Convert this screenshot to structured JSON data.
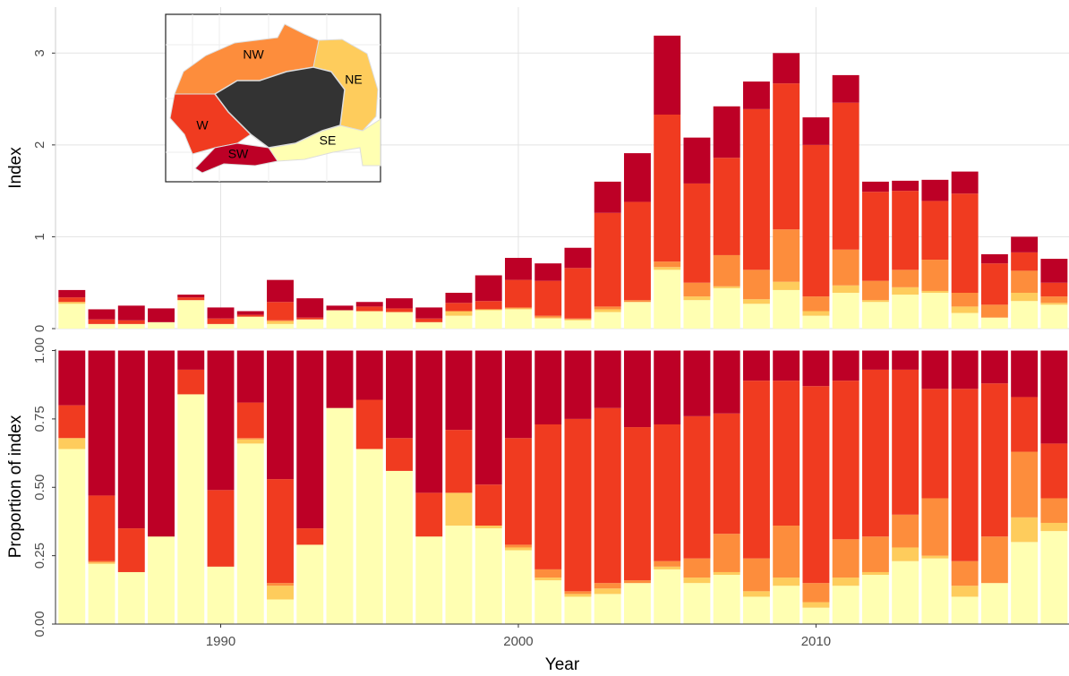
{
  "chart_data": [
    {
      "type": "bar",
      "stacked": true,
      "ylabel": "Index",
      "x": [
        1985,
        1986,
        1987,
        1988,
        1989,
        1990,
        1991,
        1992,
        1993,
        1994,
        1995,
        1996,
        1997,
        1998,
        1999,
        2000,
        2001,
        2002,
        2003,
        2004,
        2005,
        2006,
        2007,
        2008,
        2009,
        2010,
        2011,
        2012,
        2013,
        2014,
        2015,
        2016,
        2017,
        2018
      ],
      "xlim": [
        1984.45,
        2018.5
      ],
      "ylim": [
        0,
        3.5
      ],
      "yticks": [
        0,
        1,
        2,
        3
      ],
      "grid": true,
      "series": [
        {
          "name": "SE",
          "color": "#ffffb2",
          "values": [
            0.27,
            0.05,
            0.05,
            0.07,
            0.31,
            0.05,
            0.13,
            0.05,
            0.1,
            0.2,
            0.19,
            0.18,
            0.07,
            0.14,
            0.2,
            0.21,
            0.11,
            0.09,
            0.18,
            0.29,
            0.64,
            0.31,
            0.44,
            0.27,
            0.42,
            0.14,
            0.39,
            0.29,
            0.37,
            0.39,
            0.17,
            0.12,
            0.3,
            0.26
          ]
        },
        {
          "name": "NE",
          "color": "#fecc5c",
          "values": [
            0.02,
            0,
            0,
            0,
            0,
            0,
            0,
            0.03,
            0,
            0,
            0,
            0,
            0,
            0.05,
            0.01,
            0.01,
            0.01,
            0.01,
            0.03,
            0,
            0.03,
            0.04,
            0.02,
            0.05,
            0.09,
            0.05,
            0.08,
            0.02,
            0.08,
            0.02,
            0.07,
            0,
            0.09,
            0.02
          ]
        },
        {
          "name": "NW",
          "color": "#fd8d3c",
          "values": [
            0,
            0,
            0,
            0,
            0,
            0,
            0,
            0.01,
            0,
            0,
            0,
            0,
            0,
            0,
            0,
            0.01,
            0.02,
            0.01,
            0.03,
            0.02,
            0.06,
            0.15,
            0.34,
            0.32,
            0.57,
            0.16,
            0.39,
            0.21,
            0.19,
            0.34,
            0.15,
            0.14,
            0.24,
            0.07
          ]
        },
        {
          "name": "W",
          "color": "#f03b20",
          "values": [
            0.05,
            0.05,
            0.04,
            0,
            0.03,
            0.06,
            0.02,
            0.2,
            0.02,
            0,
            0.05,
            0.04,
            0.04,
            0.09,
            0.09,
            0.3,
            0.38,
            0.55,
            1.02,
            1.07,
            1.6,
            1.08,
            1.06,
            1.75,
            1.59,
            1.65,
            1.6,
            0.97,
            0.86,
            0.64,
            1.08,
            0.45,
            0.2,
            0.15
          ]
        },
        {
          "name": "SW",
          "color": "#bd0026",
          "values": [
            0.08,
            0.11,
            0.16,
            0.15,
            0.03,
            0.12,
            0.04,
            0.24,
            0.21,
            0.05,
            0.05,
            0.11,
            0.12,
            0.11,
            0.28,
            0.24,
            0.19,
            0.22,
            0.34,
            0.53,
            0.86,
            0.5,
            0.56,
            0.3,
            0.33,
            0.3,
            0.3,
            0.11,
            0.11,
            0.23,
            0.24,
            0.1,
            0.17,
            0.26
          ]
        }
      ]
    },
    {
      "type": "bar",
      "stacked": true,
      "ylabel": "Proportion of index",
      "xlabel": "Year",
      "x": [
        1985,
        1986,
        1987,
        1988,
        1989,
        1990,
        1991,
        1992,
        1993,
        1994,
        1995,
        1996,
        1997,
        1998,
        1999,
        2000,
        2001,
        2002,
        2003,
        2004,
        2005,
        2006,
        2007,
        2008,
        2009,
        2010,
        2011,
        2012,
        2013,
        2014,
        2015,
        2016,
        2017,
        2018
      ],
      "xlim": [
        1984.45,
        2018.5
      ],
      "xticks": [
        1990,
        2000,
        2010
      ],
      "ylim": [
        0,
        1.005
      ],
      "yticks": [
        {
          "value": 0,
          "label": "0.00"
        },
        0.25,
        {
          "value": 0.5,
          "label": "0.50"
        },
        0.75,
        {
          "value": 1,
          "label": "1.00"
        }
      ],
      "grid": false,
      "series": [
        {
          "name": "SE",
          "color": "#ffffb2",
          "values": [
            0.64,
            0.22,
            0.19,
            0.32,
            0.84,
            0.21,
            0.66,
            0.09,
            0.29,
            0.79,
            0.64,
            0.56,
            0.32,
            0.36,
            0.35,
            0.27,
            0.16,
            0.1,
            0.11,
            0.15,
            0.2,
            0.15,
            0.18,
            0.1,
            0.14,
            0.06,
            0.14,
            0.18,
            0.23,
            0.24,
            0.1,
            0.15,
            0.3,
            0.34
          ]
        },
        {
          "name": "NE",
          "color": "#fecc5c",
          "values": [
            0.04,
            0.005,
            0,
            0,
            0,
            0,
            0.015,
            0.05,
            0,
            0,
            0,
            0,
            0,
            0.12,
            0.01,
            0.01,
            0.01,
            0.01,
            0.02,
            0,
            0.01,
            0.02,
            0.01,
            0.02,
            0.03,
            0.02,
            0.03,
            0.01,
            0.05,
            0.01,
            0.04,
            0,
            0.09,
            0.03
          ]
        },
        {
          "name": "NW",
          "color": "#fd8d3c",
          "values": [
            0,
            0.005,
            0,
            0,
            0,
            0,
            0.005,
            0.01,
            0,
            0,
            0,
            0,
            0,
            0,
            0,
            0.01,
            0.03,
            0.01,
            0.02,
            0.01,
            0.02,
            0.07,
            0.14,
            0.12,
            0.19,
            0.07,
            0.14,
            0.13,
            0.12,
            0.21,
            0.09,
            0.17,
            0.24,
            0.09
          ]
        },
        {
          "name": "W",
          "color": "#f03b20",
          "values": [
            0.12,
            0.24,
            0.16,
            0,
            0.09,
            0.28,
            0.13,
            0.38,
            0.06,
            0,
            0.18,
            0.12,
            0.16,
            0.23,
            0.15,
            0.39,
            0.53,
            0.63,
            0.64,
            0.56,
            0.5,
            0.52,
            0.44,
            0.65,
            0.53,
            0.72,
            0.58,
            0.61,
            0.53,
            0.4,
            0.63,
            0.56,
            0.2,
            0.2
          ]
        },
        {
          "name": "SW",
          "color": "#bd0026",
          "values": [
            0.2,
            0.53,
            0.65,
            0.68,
            0.07,
            0.51,
            0.19,
            0.47,
            0.65,
            0.21,
            0.18,
            0.32,
            0.52,
            0.29,
            0.49,
            0.32,
            0.27,
            0.25,
            0.21,
            0.28,
            0.27,
            0.24,
            0.23,
            0.11,
            0.11,
            0.13,
            0.11,
            0.07,
            0.07,
            0.14,
            0.14,
            0.12,
            0.17,
            0.34
          ]
        }
      ]
    }
  ]
}
